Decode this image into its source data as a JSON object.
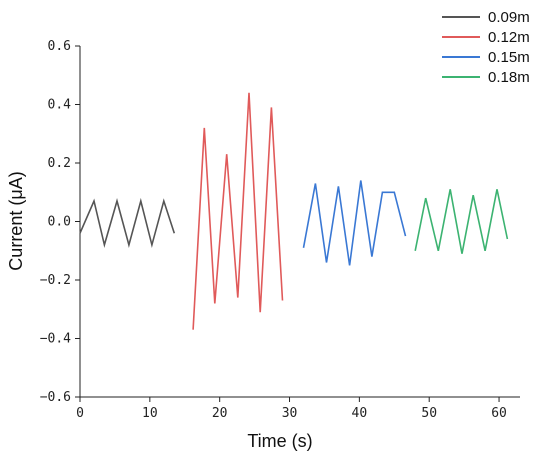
{
  "chart_data": {
    "type": "line",
    "title": "",
    "xlabel": "Time (s)",
    "ylabel": "Current (μA)",
    "xlim": [
      0,
      63
    ],
    "ylim": [
      -0.6,
      0.6
    ],
    "xticks": [
      0,
      10,
      20,
      30,
      40,
      50,
      60
    ],
    "yticks": [
      0.6,
      0.4,
      0.2,
      0.0,
      -0.2,
      -0.4,
      -0.6
    ],
    "ytick_labels": [
      "0.6",
      "0.4",
      "0.2",
      "0.0",
      "−0.2",
      "−0.4",
      "−0.6"
    ],
    "grid": false,
    "legend_position": "top-right",
    "series": [
      {
        "name": "0.09m",
        "color": "#555555",
        "x": [
          0,
          2,
          3.5,
          5.3,
          7,
          8.7,
          10.3,
          12,
          13.5
        ],
        "y": [
          -0.04,
          0.07,
          -0.08,
          0.07,
          -0.08,
          0.07,
          -0.08,
          0.07,
          -0.04
        ]
      },
      {
        "name": "0.12m",
        "color": "#e05a5a",
        "x": [
          16.2,
          17.8,
          19.3,
          21,
          22.6,
          24.2,
          25.8,
          27.4,
          29
        ],
        "y": [
          -0.37,
          0.32,
          -0.28,
          0.23,
          -0.26,
          0.44,
          -0.31,
          0.39,
          -0.27
        ]
      },
      {
        "name": "0.15m",
        "color": "#3a78d4",
        "x": [
          32,
          33.7,
          35.3,
          37,
          38.6,
          40.2,
          41.8,
          43.3,
          45,
          46.6
        ],
        "y": [
          -0.09,
          0.13,
          -0.14,
          0.12,
          -0.15,
          0.14,
          -0.12,
          0.1,
          0.1,
          -0.05
        ]
      },
      {
        "name": "0.18m",
        "color": "#3cb371",
        "x": [
          48,
          49.5,
          51.3,
          53,
          54.7,
          56.3,
          58,
          59.7,
          61.2
        ],
        "y": [
          -0.1,
          0.08,
          -0.1,
          0.11,
          -0.11,
          0.09,
          -0.1,
          0.11,
          -0.06
        ]
      }
    ]
  }
}
